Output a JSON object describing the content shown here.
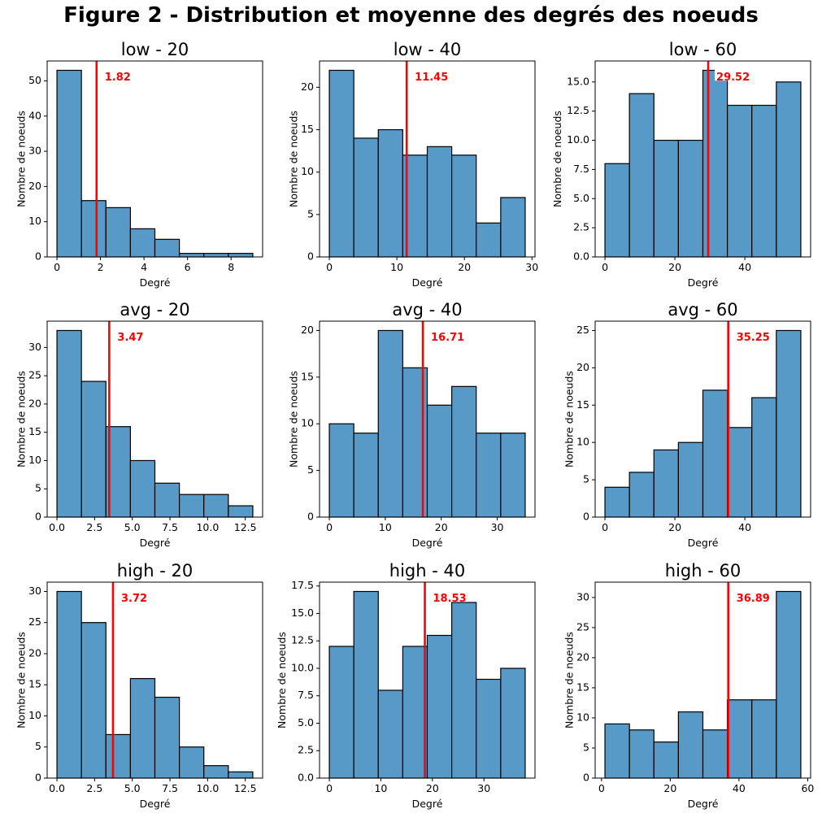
{
  "figure": {
    "title": "Figure 2 - Distribution et moyenne des degrés des noeuds"
  },
  "colors": {
    "bar": "#5799c7",
    "bar_edge": "#000000",
    "mean_line": "#ff0000",
    "mean_text": "#ff0000"
  },
  "chart_data": [
    {
      "type": "bar",
      "title": "low - 20",
      "xlabel": "Degré",
      "ylabel": "Nombre de noeuds",
      "bin_edges": [
        0,
        1.125,
        2.25,
        3.375,
        4.5,
        5.625,
        6.75,
        7.875,
        9
      ],
      "counts": [
        53,
        16,
        14,
        8,
        5,
        1,
        1,
        1
      ],
      "mean": 1.82,
      "mean_label": "1.82",
      "xlim": [
        -0.45,
        9.45
      ],
      "ylim": [
        0,
        55.65
      ],
      "xticks": [
        0,
        2,
        4,
        6,
        8
      ],
      "yticks": [
        0,
        10,
        20,
        30,
        40,
        50
      ],
      "xtick_labels": [
        "0",
        "2",
        "4",
        "6",
        "8"
      ],
      "ytick_labels": [
        "0",
        "10",
        "20",
        "30",
        "40",
        "50"
      ]
    },
    {
      "type": "bar",
      "title": "low - 40",
      "xlabel": "Degré",
      "ylabel": "Nombre de noeuds",
      "bin_edges": [
        0,
        3.625,
        7.25,
        10.875,
        14.5,
        18.125,
        21.75,
        25.375,
        29
      ],
      "counts": [
        22,
        14,
        15,
        12,
        13,
        12,
        4,
        7
      ],
      "mean": 11.45,
      "mean_label": "11.45",
      "xlim": [
        -1.45,
        30.45
      ],
      "ylim": [
        0,
        23.1
      ],
      "xticks": [
        0,
        10,
        20,
        30
      ],
      "yticks": [
        0,
        5,
        10,
        15,
        20
      ],
      "xtick_labels": [
        "0",
        "10",
        "20",
        "30"
      ],
      "ytick_labels": [
        "0",
        "5",
        "10",
        "15",
        "20"
      ]
    },
    {
      "type": "bar",
      "title": "low - 60",
      "xlabel": "Degré",
      "ylabel": "Nombre de noeuds",
      "bin_edges": [
        0,
        7,
        14,
        21,
        28,
        35,
        42,
        49,
        56
      ],
      "counts": [
        8,
        14,
        10,
        10,
        16,
        13,
        13,
        15
      ],
      "mean": 29.52,
      "mean_label": "29.52",
      "xlim": [
        -2.8,
        58.8
      ],
      "ylim": [
        0,
        16.8
      ],
      "xticks": [
        0,
        20,
        40
      ],
      "yticks": [
        0,
        2.5,
        5,
        7.5,
        10,
        12.5,
        15
      ],
      "xtick_labels": [
        "0",
        "20",
        "40"
      ],
      "ytick_labels": [
        "0.0",
        "2.5",
        "5.0",
        "7.5",
        "10.0",
        "12.5",
        "15.0"
      ]
    },
    {
      "type": "bar",
      "title": "avg - 20",
      "xlabel": "Degré",
      "ylabel": "Nombre de noeuds",
      "bin_edges": [
        0,
        1.625,
        3.25,
        4.875,
        6.5,
        8.125,
        9.75,
        11.375,
        13
      ],
      "counts": [
        33,
        24,
        16,
        10,
        6,
        4,
        4,
        2
      ],
      "mean": 3.47,
      "mean_label": "3.47",
      "xlim": [
        -0.65,
        13.65
      ],
      "ylim": [
        0,
        34.65
      ],
      "xticks": [
        0,
        2.5,
        5,
        7.5,
        10,
        12.5
      ],
      "yticks": [
        0,
        5,
        10,
        15,
        20,
        25,
        30
      ],
      "xtick_labels": [
        "0.0",
        "2.5",
        "5.0",
        "7.5",
        "10.0",
        "12.5"
      ],
      "ytick_labels": [
        "0",
        "5",
        "10",
        "15",
        "20",
        "25",
        "30"
      ]
    },
    {
      "type": "bar",
      "title": "avg - 40",
      "xlabel": "Degré",
      "ylabel": "Nombre de noeuds",
      "bin_edges": [
        0,
        4.375,
        8.75,
        13.125,
        17.5,
        21.875,
        26.25,
        30.625,
        35
      ],
      "counts": [
        10,
        9,
        20,
        16,
        12,
        14,
        9,
        9
      ],
      "mean": 16.71,
      "mean_label": "16.71",
      "xlim": [
        -1.75,
        36.75
      ],
      "ylim": [
        0,
        21
      ],
      "xticks": [
        0,
        10,
        20,
        30
      ],
      "yticks": [
        0,
        5,
        10,
        15,
        20
      ],
      "xtick_labels": [
        "0",
        "10",
        "20",
        "30"
      ],
      "ytick_labels": [
        "0",
        "5",
        "10",
        "15",
        "20"
      ]
    },
    {
      "type": "bar",
      "title": "avg - 60",
      "xlabel": "Degré",
      "ylabel": "Nombre de noeuds",
      "bin_edges": [
        0,
        7,
        14,
        21,
        28,
        35,
        42,
        49,
        56
      ],
      "counts": [
        4,
        6,
        9,
        10,
        17,
        12,
        16,
        25
      ],
      "mean": 35.25,
      "mean_label": "35.25",
      "xlim": [
        -2.8,
        58.8
      ],
      "ylim": [
        0,
        26.25
      ],
      "xticks": [
        0,
        20,
        40
      ],
      "yticks": [
        0,
        5,
        10,
        15,
        20,
        25
      ],
      "xtick_labels": [
        "0",
        "20",
        "40"
      ],
      "ytick_labels": [
        "0",
        "5",
        "10",
        "15",
        "20",
        "25"
      ]
    },
    {
      "type": "bar",
      "title": "high - 20",
      "xlabel": "Degré",
      "ylabel": "Nombre de noeuds",
      "bin_edges": [
        0,
        1.625,
        3.25,
        4.875,
        6.5,
        8.125,
        9.75,
        11.375,
        13
      ],
      "counts": [
        30,
        25,
        7,
        16,
        13,
        5,
        2,
        1
      ],
      "mean": 3.72,
      "mean_label": "3.72",
      "xlim": [
        -0.65,
        13.65
      ],
      "ylim": [
        0,
        31.5
      ],
      "xticks": [
        0,
        2.5,
        5,
        7.5,
        10,
        12.5
      ],
      "yticks": [
        0,
        5,
        10,
        15,
        20,
        25,
        30
      ],
      "xtick_labels": [
        "0.0",
        "2.5",
        "5.0",
        "7.5",
        "10.0",
        "12.5"
      ],
      "ytick_labels": [
        "0",
        "5",
        "10",
        "15",
        "20",
        "25",
        "30"
      ]
    },
    {
      "type": "bar",
      "title": "high - 40",
      "xlabel": "Degré",
      "ylabel": "Nombre de noeuds",
      "bin_edges": [
        0,
        4.75,
        9.5,
        14.25,
        19,
        23.75,
        28.5,
        33.25,
        38
      ],
      "counts": [
        12,
        17,
        8,
        12,
        13,
        16,
        9,
        10
      ],
      "mean": 18.53,
      "mean_label": "18.53",
      "xlim": [
        -1.9,
        39.9
      ],
      "ylim": [
        0,
        17.85
      ],
      "xticks": [
        0,
        10,
        20,
        30
      ],
      "yticks": [
        0,
        2.5,
        5,
        7.5,
        10,
        12.5,
        15,
        17.5
      ],
      "xtick_labels": [
        "0",
        "10",
        "20",
        "30"
      ],
      "ytick_labels": [
        "0.0",
        "2.5",
        "5.0",
        "7.5",
        "10.0",
        "12.5",
        "15.0",
        "17.5"
      ]
    },
    {
      "type": "bar",
      "title": "high - 60",
      "xlabel": "Degré",
      "ylabel": "Nombre de noeuds",
      "bin_edges": [
        1,
        8.125,
        15.25,
        22.375,
        29.5,
        36.625,
        43.75,
        50.875,
        58
      ],
      "counts": [
        9,
        8,
        6,
        11,
        8,
        13,
        13,
        31
      ],
      "mean": 36.89,
      "mean_label": "36.89",
      "xlim": [
        -1.85,
        60.85
      ],
      "ylim": [
        0,
        32.55
      ],
      "xticks": [
        0,
        20,
        40,
        60
      ],
      "yticks": [
        0,
        5,
        10,
        15,
        20,
        25,
        30
      ],
      "xtick_labels": [
        "0",
        "20",
        "40",
        "60"
      ],
      "ytick_labels": [
        "0",
        "5",
        "10",
        "15",
        "20",
        "25",
        "30"
      ]
    }
  ]
}
